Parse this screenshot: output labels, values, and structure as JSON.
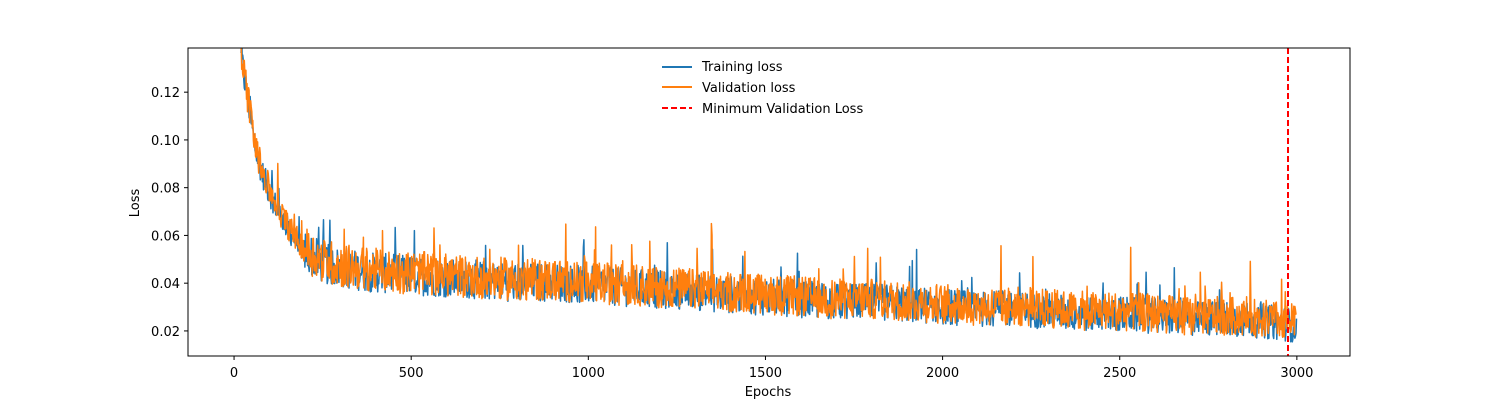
{
  "chart_data": {
    "type": "line",
    "title": "",
    "xlabel": "Epochs",
    "ylabel": "Loss",
    "xlim": [
      -130,
      3150
    ],
    "ylim": [
      0.0095,
      0.1385
    ],
    "xticks": [
      0,
      500,
      1000,
      1500,
      2000,
      2500,
      3000
    ],
    "xtick_labels": [
      "0",
      "500",
      "1000",
      "1500",
      "2000",
      "2500",
      "3000"
    ],
    "yticks": [
      0.02,
      0.04,
      0.06,
      0.08,
      0.1,
      0.12
    ],
    "ytick_labels": [
      "0.02",
      "0.04",
      "0.06",
      "0.08",
      "0.10",
      "0.12"
    ],
    "grid": false,
    "legend_position": "top-center",
    "series": [
      {
        "name": "Training loss",
        "color": "#1f77b4",
        "x": [
          20,
          40,
          60,
          80,
          100,
          130,
          160,
          200,
          250,
          300,
          350,
          400,
          500,
          600,
          700,
          800,
          900,
          1000,
          1100,
          1200,
          1300,
          1400,
          1500,
          1600,
          1700,
          1800,
          1900,
          2000,
          2100,
          2200,
          2300,
          2400,
          2500,
          2600,
          2700,
          2800,
          2900,
          2960,
          3000
        ],
        "y": [
          0.133,
          0.115,
          0.095,
          0.085,
          0.077,
          0.068,
          0.06,
          0.052,
          0.047,
          0.045,
          0.044,
          0.043,
          0.042,
          0.041,
          0.04,
          0.039,
          0.039,
          0.038,
          0.037,
          0.036,
          0.035,
          0.034,
          0.033,
          0.032,
          0.031,
          0.031,
          0.03,
          0.029,
          0.028,
          0.028,
          0.027,
          0.026,
          0.026,
          0.025,
          0.024,
          0.024,
          0.023,
          0.022,
          0.021
        ]
      },
      {
        "name": "Validation loss",
        "color": "#ff7f0e",
        "x": [
          20,
          40,
          60,
          80,
          100,
          130,
          160,
          200,
          250,
          300,
          350,
          400,
          500,
          600,
          700,
          800,
          900,
          1000,
          1100,
          1200,
          1300,
          1400,
          1500,
          1600,
          1700,
          1800,
          1900,
          2000,
          2100,
          2200,
          2300,
          2400,
          2500,
          2600,
          2700,
          2800,
          2900,
          2960,
          3000
        ],
        "y": [
          0.134,
          0.116,
          0.096,
          0.086,
          0.078,
          0.069,
          0.061,
          0.053,
          0.048,
          0.046,
          0.045,
          0.044,
          0.043,
          0.042,
          0.041,
          0.04,
          0.04,
          0.039,
          0.038,
          0.037,
          0.036,
          0.035,
          0.034,
          0.033,
          0.032,
          0.032,
          0.031,
          0.03,
          0.029,
          0.029,
          0.028,
          0.027,
          0.027,
          0.026,
          0.025,
          0.025,
          0.024,
          0.023,
          0.022
        ],
        "noise_band": 0.012
      }
    ],
    "vline": {
      "name": "Minimum Validation Loss",
      "x": 2975,
      "color": "#ff0000",
      "style": "dashed"
    }
  }
}
